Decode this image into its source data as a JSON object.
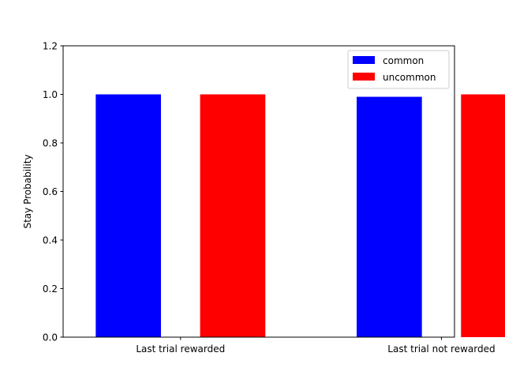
{
  "chart_data": {
    "type": "bar",
    "categories": [
      "Last trial rewarded",
      "Last trial not rewarded"
    ],
    "series": [
      {
        "name": "common",
        "values": [
          1.0,
          0.99
        ],
        "color": "#0000ff"
      },
      {
        "name": "uncommon",
        "values": [
          1.0,
          1.0
        ],
        "color": "#ff0000"
      }
    ],
    "ylabel": "Stay Probability",
    "ylim": [
      0,
      1.2
    ],
    "yticks": [
      "0.0",
      "0.2",
      "0.4",
      "0.6",
      "0.8",
      "1.0",
      "1.2"
    ],
    "grid": false,
    "legend_position": "top-right"
  }
}
